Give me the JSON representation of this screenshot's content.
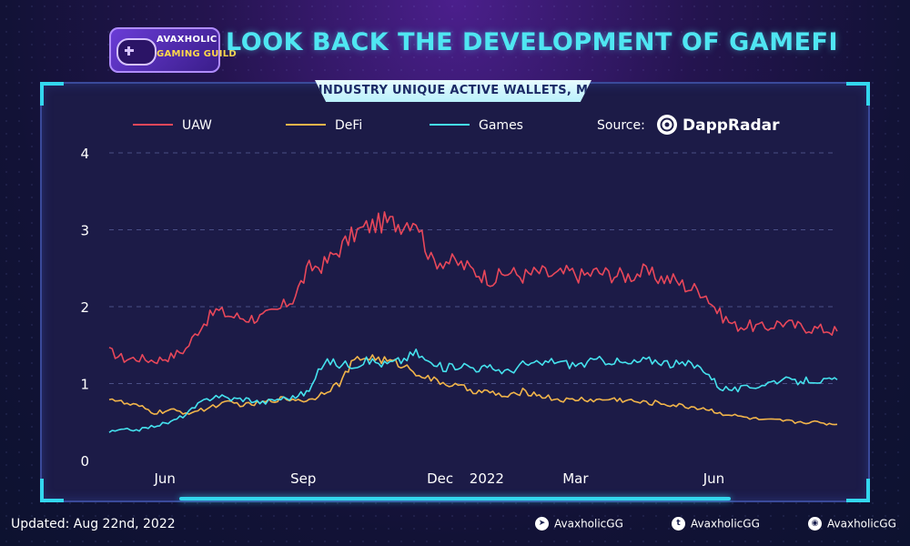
{
  "header": {
    "logo_line1": "AVAXHOLIC",
    "logo_line2": "GAMING GUILD",
    "title": "LOOK BACK THE DEVELOPMENT OF GAMEFI"
  },
  "panel": {
    "title": "INDUSTRY UNIQUE ACTIVE WALLETS, M"
  },
  "source": {
    "label": "Source:",
    "name": "DappRadar",
    "icon": "dappradar-logo-icon"
  },
  "footer": {
    "updated": "Updated: Aug 22nd, 2022",
    "socials": [
      {
        "icon": "telegram-icon",
        "label": "AvaxholicGG"
      },
      {
        "icon": "twitter-icon",
        "label": "AvaxholicGG"
      },
      {
        "icon": "discord-icon",
        "label": "AvaxholicGG"
      }
    ]
  },
  "colors": {
    "uaw": "#e8475a",
    "defi": "#f2b54a",
    "games": "#45e2ee",
    "grid": "#4a4f86",
    "title": "#4fe6f2"
  },
  "chart_data": {
    "type": "line",
    "title": "INDUSTRY UNIQUE ACTIVE WALLETS, M",
    "ylim": [
      0,
      4
    ],
    "yticks": [
      0,
      1,
      2,
      3,
      4
    ],
    "x_range": [
      "2021-04-25",
      "2022-08-22"
    ],
    "x_tick_labels": [
      {
        "label": "Jun",
        "date": "2021-06-01"
      },
      {
        "label": "Sep",
        "date": "2021-09-01"
      },
      {
        "label": "Dec",
        "date": "2021-12-01"
      },
      {
        "label": "2022",
        "date": "2022-01-01"
      },
      {
        "label": "Mar",
        "date": "2022-03-01"
      },
      {
        "label": "Jun",
        "date": "2022-06-01"
      }
    ],
    "grid": "horizontal dashed",
    "legend_position": "top-left",
    "series": [
      {
        "name": "UAW",
        "color": "#e8475a",
        "points": [
          [
            "2021-04-25",
            1.42
          ],
          [
            "2021-05-05",
            1.32
          ],
          [
            "2021-05-15",
            1.33
          ],
          [
            "2021-05-25",
            1.3
          ],
          [
            "2021-06-05",
            1.35
          ],
          [
            "2021-06-15",
            1.45
          ],
          [
            "2021-06-25",
            1.75
          ],
          [
            "2021-07-05",
            1.95
          ],
          [
            "2021-07-15",
            1.88
          ],
          [
            "2021-07-25",
            1.85
          ],
          [
            "2021-08-05",
            1.86
          ],
          [
            "2021-08-15",
            1.95
          ],
          [
            "2021-08-25",
            2.1
          ],
          [
            "2021-09-05",
            2.5
          ],
          [
            "2021-09-15",
            2.55
          ],
          [
            "2021-09-25",
            2.75
          ],
          [
            "2021-10-05",
            2.95
          ],
          [
            "2021-10-15",
            3.05
          ],
          [
            "2021-10-25",
            3.1
          ],
          [
            "2021-11-05",
            3.08
          ],
          [
            "2021-11-15",
            3.15
          ],
          [
            "2021-11-25",
            2.6
          ],
          [
            "2021-12-05",
            2.6
          ],
          [
            "2021-12-15",
            2.55
          ],
          [
            "2021-12-25",
            2.45
          ],
          [
            "2022-01-05",
            2.35
          ],
          [
            "2022-01-15",
            2.45
          ],
          [
            "2022-01-25",
            2.4
          ],
          [
            "2022-02-05",
            2.45
          ],
          [
            "2022-02-15",
            2.4
          ],
          [
            "2022-02-25",
            2.45
          ],
          [
            "2022-03-05",
            2.4
          ],
          [
            "2022-03-15",
            2.45
          ],
          [
            "2022-03-25",
            2.42
          ],
          [
            "2022-04-05",
            2.4
          ],
          [
            "2022-04-15",
            2.45
          ],
          [
            "2022-04-25",
            2.38
          ],
          [
            "2022-05-05",
            2.35
          ],
          [
            "2022-05-15",
            2.25
          ],
          [
            "2022-05-25",
            2.2
          ],
          [
            "2022-06-05",
            1.9
          ],
          [
            "2022-06-15",
            1.75
          ],
          [
            "2022-06-25",
            1.75
          ],
          [
            "2022-07-05",
            1.72
          ],
          [
            "2022-07-15",
            1.8
          ],
          [
            "2022-07-25",
            1.75
          ],
          [
            "2022-08-05",
            1.72
          ],
          [
            "2022-08-15",
            1.7
          ],
          [
            "2022-08-22",
            1.68
          ]
        ]
      },
      {
        "name": "DeFi",
        "color": "#f2b54a",
        "points": [
          [
            "2021-04-25",
            0.82
          ],
          [
            "2021-05-05",
            0.74
          ],
          [
            "2021-05-15",
            0.7
          ],
          [
            "2021-05-25",
            0.62
          ],
          [
            "2021-06-05",
            0.65
          ],
          [
            "2021-06-15",
            0.62
          ],
          [
            "2021-06-25",
            0.65
          ],
          [
            "2021-07-05",
            0.72
          ],
          [
            "2021-07-15",
            0.75
          ],
          [
            "2021-07-25",
            0.72
          ],
          [
            "2021-08-05",
            0.75
          ],
          [
            "2021-08-15",
            0.8
          ],
          [
            "2021-08-25",
            0.8
          ],
          [
            "2021-09-05",
            0.78
          ],
          [
            "2021-09-15",
            0.9
          ],
          [
            "2021-09-25",
            1.0
          ],
          [
            "2021-10-05",
            1.3
          ],
          [
            "2021-10-15",
            1.35
          ],
          [
            "2021-10-25",
            1.3
          ],
          [
            "2021-11-05",
            1.25
          ],
          [
            "2021-11-15",
            1.15
          ],
          [
            "2021-11-25",
            1.05
          ],
          [
            "2021-12-05",
            1.0
          ],
          [
            "2021-12-15",
            0.95
          ],
          [
            "2021-12-25",
            0.9
          ],
          [
            "2022-01-05",
            0.88
          ],
          [
            "2022-01-15",
            0.82
          ],
          [
            "2022-01-25",
            0.9
          ],
          [
            "2022-02-05",
            0.85
          ],
          [
            "2022-02-15",
            0.8
          ],
          [
            "2022-02-25",
            0.78
          ],
          [
            "2022-03-05",
            0.8
          ],
          [
            "2022-03-15",
            0.78
          ],
          [
            "2022-03-25",
            0.8
          ],
          [
            "2022-04-05",
            0.78
          ],
          [
            "2022-04-15",
            0.75
          ],
          [
            "2022-04-25",
            0.75
          ],
          [
            "2022-05-05",
            0.72
          ],
          [
            "2022-05-15",
            0.7
          ],
          [
            "2022-05-25",
            0.68
          ],
          [
            "2022-06-05",
            0.62
          ],
          [
            "2022-06-15",
            0.58
          ],
          [
            "2022-06-25",
            0.55
          ],
          [
            "2022-07-05",
            0.52
          ],
          [
            "2022-07-15",
            0.52
          ],
          [
            "2022-07-25",
            0.5
          ],
          [
            "2022-08-05",
            0.5
          ],
          [
            "2022-08-15",
            0.48
          ],
          [
            "2022-08-22",
            0.47
          ]
        ]
      },
      {
        "name": "Games",
        "color": "#45e2ee",
        "points": [
          [
            "2021-04-25",
            0.37
          ],
          [
            "2021-05-05",
            0.4
          ],
          [
            "2021-05-15",
            0.4
          ],
          [
            "2021-05-25",
            0.45
          ],
          [
            "2021-06-05",
            0.5
          ],
          [
            "2021-06-15",
            0.6
          ],
          [
            "2021-06-25",
            0.75
          ],
          [
            "2021-07-05",
            0.85
          ],
          [
            "2021-07-15",
            0.8
          ],
          [
            "2021-07-25",
            0.8
          ],
          [
            "2021-08-05",
            0.75
          ],
          [
            "2021-08-15",
            0.8
          ],
          [
            "2021-08-25",
            0.82
          ],
          [
            "2021-09-05",
            0.9
          ],
          [
            "2021-09-15",
            1.3
          ],
          [
            "2021-09-25",
            1.25
          ],
          [
            "2021-10-05",
            1.25
          ],
          [
            "2021-10-15",
            1.3
          ],
          [
            "2021-10-25",
            1.25
          ],
          [
            "2021-11-05",
            1.3
          ],
          [
            "2021-11-15",
            1.4
          ],
          [
            "2021-11-25",
            1.25
          ],
          [
            "2021-12-05",
            1.2
          ],
          [
            "2021-12-15",
            1.25
          ],
          [
            "2021-12-25",
            1.2
          ],
          [
            "2022-01-05",
            1.2
          ],
          [
            "2022-01-15",
            1.15
          ],
          [
            "2022-01-25",
            1.25
          ],
          [
            "2022-02-05",
            1.25
          ],
          [
            "2022-02-15",
            1.3
          ],
          [
            "2022-02-25",
            1.25
          ],
          [
            "2022-03-05",
            1.25
          ],
          [
            "2022-03-15",
            1.3
          ],
          [
            "2022-03-25",
            1.3
          ],
          [
            "2022-04-05",
            1.25
          ],
          [
            "2022-04-15",
            1.3
          ],
          [
            "2022-04-25",
            1.3
          ],
          [
            "2022-05-05",
            1.25
          ],
          [
            "2022-05-15",
            1.25
          ],
          [
            "2022-05-25",
            1.2
          ],
          [
            "2022-06-05",
            0.95
          ],
          [
            "2022-06-15",
            0.92
          ],
          [
            "2022-06-25",
            0.95
          ],
          [
            "2022-07-05",
            1.0
          ],
          [
            "2022-07-15",
            1.05
          ],
          [
            "2022-07-25",
            1.02
          ],
          [
            "2022-08-05",
            1.05
          ],
          [
            "2022-08-15",
            1.03
          ],
          [
            "2022-08-22",
            1.05
          ]
        ]
      }
    ]
  }
}
